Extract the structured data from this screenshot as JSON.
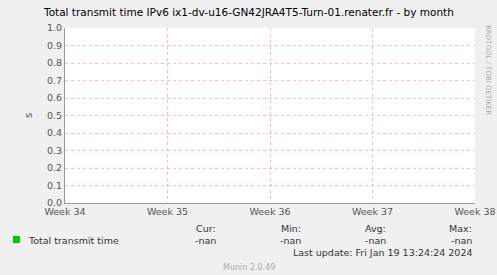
{
  "chart_data": {
    "type": "line",
    "title": "Total transmit time IPv6 ix1-dv-u16-GN42JRA4T5-Turn-01.renater.fr - by month",
    "y_label": "s",
    "categories": [
      "Week 34",
      "Week 35",
      "Week 36",
      "Week 37",
      "Week 38"
    ],
    "series": [
      {
        "name": "Total transmit time",
        "color": "#00cc00",
        "values": [
          null,
          null,
          null,
          null,
          null
        ]
      }
    ],
    "ylim": [
      0,
      1
    ],
    "yticks": [
      {
        "value": 0,
        "label": "0.0"
      },
      0.1,
      0.2,
      0.3,
      0.4,
      0.5,
      0.6,
      0.7,
      0.8,
      0.9,
      {
        "value": 1,
        "label": "1.0"
      }
    ],
    "grid": true,
    "legend_table": {
      "headers": [
        "Cur:",
        "Min:",
        "Avg:",
        "Max:"
      ],
      "values": [
        "-nan",
        "-nan",
        "-nan",
        "-nan"
      ]
    },
    "last_update": "Last update: Fri Jan 19 13:24:24 2024",
    "side_text": "RRDTOOL / TOBI OETIKER",
    "footer": "Munin 2.0.49"
  }
}
